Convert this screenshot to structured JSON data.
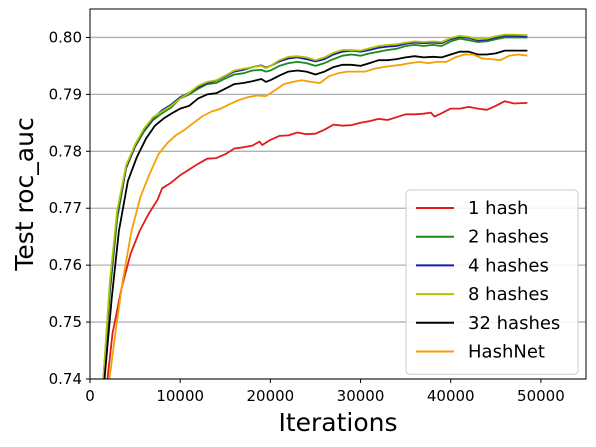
{
  "chart_data": {
    "type": "line",
    "title": "",
    "xlabel": "Iterations",
    "ylabel": "Test roc_auc",
    "xlim": [
      0,
      55000
    ],
    "ylim": [
      0.74,
      0.805
    ],
    "x_ticks": [
      0,
      10000,
      20000,
      30000,
      40000,
      50000
    ],
    "x_tick_labels": [
      "0",
      "10000",
      "20000",
      "30000",
      "40000",
      "50000"
    ],
    "y_ticks": [
      0.74,
      0.75,
      0.76,
      0.77,
      0.78,
      0.79,
      0.8
    ],
    "y_tick_labels": [
      "0.74",
      "0.75",
      "0.76",
      "0.77",
      "0.78",
      "0.79",
      "0.80"
    ],
    "grid": "horizontal",
    "legend_position": "lower-right",
    "series": [
      {
        "name": "1 hash",
        "color": "#e31a1c",
        "points": [
          [
            1800,
            0.738
          ],
          [
            2500,
            0.748
          ],
          [
            3500,
            0.756
          ],
          [
            4500,
            0.762
          ],
          [
            5500,
            0.766
          ],
          [
            6500,
            0.769
          ],
          [
            7500,
            0.7715
          ],
          [
            8000,
            0.7735
          ],
          [
            9000,
            0.7745
          ],
          [
            10000,
            0.7758
          ],
          [
            11000,
            0.7768
          ],
          [
            12000,
            0.7778
          ],
          [
            13000,
            0.7787
          ],
          [
            14000,
            0.7788
          ],
          [
            15000,
            0.7795
          ],
          [
            16000,
            0.7805
          ],
          [
            17000,
            0.7807
          ],
          [
            18000,
            0.781
          ],
          [
            18800,
            0.7817
          ],
          [
            19100,
            0.7811
          ],
          [
            20000,
            0.782
          ],
          [
            21000,
            0.7827
          ],
          [
            22000,
            0.7828
          ],
          [
            23000,
            0.7833
          ],
          [
            24000,
            0.783
          ],
          [
            25000,
            0.7831
          ],
          [
            26000,
            0.7838
          ],
          [
            27000,
            0.7847
          ],
          [
            28000,
            0.7845
          ],
          [
            29000,
            0.7846
          ],
          [
            30000,
            0.785
          ],
          [
            31000,
            0.7853
          ],
          [
            32000,
            0.7857
          ],
          [
            33000,
            0.7855
          ],
          [
            34000,
            0.786
          ],
          [
            35000,
            0.7865
          ],
          [
            36000,
            0.7865
          ],
          [
            37000,
            0.7866
          ],
          [
            37800,
            0.7868
          ],
          [
            38200,
            0.7861
          ],
          [
            39000,
            0.7867
          ],
          [
            40000,
            0.7875
          ],
          [
            41000,
            0.7875
          ],
          [
            42000,
            0.7878
          ],
          [
            43000,
            0.7875
          ],
          [
            44000,
            0.7873
          ],
          [
            45000,
            0.788
          ],
          [
            46000,
            0.7888
          ],
          [
            47000,
            0.7884
          ],
          [
            48500,
            0.7885
          ]
        ]
      },
      {
        "name": "2 hashes",
        "color": "#1a8a1a",
        "points": [
          [
            1400,
            0.738
          ],
          [
            2200,
            0.755
          ],
          [
            3000,
            0.768
          ],
          [
            4000,
            0.777
          ],
          [
            5000,
            0.7808
          ],
          [
            6000,
            0.7835
          ],
          [
            7000,
            0.7855
          ],
          [
            8000,
            0.7867
          ],
          [
            9000,
            0.7877
          ],
          [
            10000,
            0.7893
          ],
          [
            11000,
            0.79
          ],
          [
            12000,
            0.791
          ],
          [
            13000,
            0.7918
          ],
          [
            14000,
            0.792
          ],
          [
            15000,
            0.7928
          ],
          [
            16000,
            0.7935
          ],
          [
            17000,
            0.7937
          ],
          [
            18000,
            0.7942
          ],
          [
            19000,
            0.7943
          ],
          [
            19500,
            0.794
          ],
          [
            20000,
            0.7942
          ],
          [
            21000,
            0.795
          ],
          [
            22000,
            0.7955
          ],
          [
            23000,
            0.7957
          ],
          [
            24000,
            0.7955
          ],
          [
            25000,
            0.795
          ],
          [
            26000,
            0.7955
          ],
          [
            27000,
            0.7962
          ],
          [
            28000,
            0.7968
          ],
          [
            29000,
            0.797
          ],
          [
            30000,
            0.7968
          ],
          [
            31000,
            0.7972
          ],
          [
            32000,
            0.7975
          ],
          [
            33000,
            0.7978
          ],
          [
            34000,
            0.798
          ],
          [
            35000,
            0.7985
          ],
          [
            36000,
            0.7987
          ],
          [
            37000,
            0.7985
          ],
          [
            38000,
            0.7987
          ],
          [
            39000,
            0.7985
          ],
          [
            40000,
            0.7993
          ],
          [
            41000,
            0.7998
          ],
          [
            42000,
            0.7995
          ],
          [
            43000,
            0.7992
          ],
          [
            44000,
            0.7993
          ],
          [
            45000,
            0.7997
          ],
          [
            46000,
            0.8
          ],
          [
            47000,
            0.8
          ],
          [
            48500,
            0.8
          ]
        ]
      },
      {
        "name": "4 hashes",
        "color": "#1a1ab0",
        "points": [
          [
            1400,
            0.738
          ],
          [
            2200,
            0.756
          ],
          [
            3000,
            0.769
          ],
          [
            4000,
            0.7772
          ],
          [
            5000,
            0.781
          ],
          [
            6000,
            0.7838
          ],
          [
            7000,
            0.7858
          ],
          [
            8000,
            0.7872
          ],
          [
            9000,
            0.7882
          ],
          [
            10000,
            0.7895
          ],
          [
            11000,
            0.7903
          ],
          [
            12000,
            0.7913
          ],
          [
            13000,
            0.792
          ],
          [
            14000,
            0.7924
          ],
          [
            15000,
            0.7932
          ],
          [
            16000,
            0.794
          ],
          [
            17000,
            0.7943
          ],
          [
            18000,
            0.7948
          ],
          [
            19000,
            0.7951
          ],
          [
            19500,
            0.7947
          ],
          [
            20000,
            0.795
          ],
          [
            21000,
            0.7958
          ],
          [
            22000,
            0.7963
          ],
          [
            23000,
            0.7965
          ],
          [
            24000,
            0.7962
          ],
          [
            25000,
            0.7958
          ],
          [
            26000,
            0.7962
          ],
          [
            27000,
            0.797
          ],
          [
            28000,
            0.7975
          ],
          [
            29000,
            0.7977
          ],
          [
            30000,
            0.7975
          ],
          [
            31000,
            0.7978
          ],
          [
            32000,
            0.7982
          ],
          [
            33000,
            0.7984
          ],
          [
            34000,
            0.7985
          ],
          [
            35000,
            0.7989
          ],
          [
            36000,
            0.7991
          ],
          [
            37000,
            0.799
          ],
          [
            38000,
            0.7991
          ],
          [
            39000,
            0.799
          ],
          [
            40000,
            0.7997
          ],
          [
            41000,
            0.8001
          ],
          [
            42000,
            0.7999
          ],
          [
            43000,
            0.7995
          ],
          [
            44000,
            0.7996
          ],
          [
            45000,
            0.8
          ],
          [
            46000,
            0.8003
          ],
          [
            47000,
            0.8003
          ],
          [
            48500,
            0.8002
          ]
        ]
      },
      {
        "name": "8 hashes",
        "color": "#b5c400",
        "points": [
          [
            1400,
            0.738
          ],
          [
            2200,
            0.757
          ],
          [
            3000,
            0.7695
          ],
          [
            4000,
            0.7775
          ],
          [
            5000,
            0.7812
          ],
          [
            6000,
            0.784
          ],
          [
            7000,
            0.786
          ],
          [
            8000,
            0.787
          ],
          [
            9000,
            0.788
          ],
          [
            10000,
            0.7893
          ],
          [
            11000,
            0.7903
          ],
          [
            12000,
            0.7915
          ],
          [
            13000,
            0.7922
          ],
          [
            14000,
            0.7925
          ],
          [
            15000,
            0.7933
          ],
          [
            16000,
            0.7942
          ],
          [
            17000,
            0.7945
          ],
          [
            18000,
            0.7948
          ],
          [
            19000,
            0.795
          ],
          [
            19500,
            0.7946
          ],
          [
            20000,
            0.795
          ],
          [
            21000,
            0.796
          ],
          [
            22000,
            0.7966
          ],
          [
            23000,
            0.7967
          ],
          [
            24000,
            0.7965
          ],
          [
            25000,
            0.796
          ],
          [
            26000,
            0.7965
          ],
          [
            27000,
            0.7973
          ],
          [
            28000,
            0.7978
          ],
          [
            29000,
            0.7978
          ],
          [
            30000,
            0.7977
          ],
          [
            31000,
            0.7981
          ],
          [
            32000,
            0.7985
          ],
          [
            33000,
            0.7987
          ],
          [
            34000,
            0.7988
          ],
          [
            35000,
            0.7991
          ],
          [
            36000,
            0.7993
          ],
          [
            37000,
            0.7992
          ],
          [
            38000,
            0.7993
          ],
          [
            39000,
            0.7992
          ],
          [
            40000,
            0.7999
          ],
          [
            41000,
            0.8003
          ],
          [
            42000,
            0.8001
          ],
          [
            43000,
            0.7997
          ],
          [
            44000,
            0.7998
          ],
          [
            45000,
            0.8002
          ],
          [
            46000,
            0.8005
          ],
          [
            47000,
            0.8005
          ],
          [
            48500,
            0.8004
          ]
        ]
      },
      {
        "name": "32 hashes",
        "color": "#000000",
        "points": [
          [
            1500,
            0.738
          ],
          [
            2400,
            0.754
          ],
          [
            3200,
            0.766
          ],
          [
            4200,
            0.7748
          ],
          [
            5200,
            0.779
          ],
          [
            6200,
            0.7822
          ],
          [
            7200,
            0.7845
          ],
          [
            8200,
            0.7858
          ],
          [
            9000,
            0.7866
          ],
          [
            10000,
            0.7875
          ],
          [
            11000,
            0.788
          ],
          [
            12000,
            0.7893
          ],
          [
            13000,
            0.79
          ],
          [
            14000,
            0.7902
          ],
          [
            15000,
            0.791
          ],
          [
            16000,
            0.7918
          ],
          [
            17000,
            0.792
          ],
          [
            18000,
            0.7923
          ],
          [
            19000,
            0.7927
          ],
          [
            19500,
            0.7922
          ],
          [
            20000,
            0.7925
          ],
          [
            21000,
            0.7933
          ],
          [
            22000,
            0.794
          ],
          [
            23000,
            0.7942
          ],
          [
            24000,
            0.794
          ],
          [
            25000,
            0.7935
          ],
          [
            26000,
            0.794
          ],
          [
            27000,
            0.7948
          ],
          [
            28000,
            0.7952
          ],
          [
            29000,
            0.7952
          ],
          [
            30000,
            0.795
          ],
          [
            31000,
            0.7955
          ],
          [
            32000,
            0.796
          ],
          [
            33000,
            0.796
          ],
          [
            34000,
            0.7962
          ],
          [
            35000,
            0.7965
          ],
          [
            36000,
            0.7967
          ],
          [
            37000,
            0.7965
          ],
          [
            38000,
            0.7966
          ],
          [
            39000,
            0.7965
          ],
          [
            40000,
            0.797
          ],
          [
            41000,
            0.7975
          ],
          [
            42000,
            0.7975
          ],
          [
            43000,
            0.797
          ],
          [
            44000,
            0.797
          ],
          [
            45000,
            0.7972
          ],
          [
            46000,
            0.7977
          ],
          [
            47000,
            0.7977
          ],
          [
            48500,
            0.7977
          ]
        ]
      },
      {
        "name": "HashNet",
        "color": "#f5a000",
        "points": [
          [
            2000,
            0.738
          ],
          [
            2800,
            0.748
          ],
          [
            3600,
            0.757
          ],
          [
            4600,
            0.766
          ],
          [
            5600,
            0.772
          ],
          [
            6600,
            0.776
          ],
          [
            7600,
            0.7795
          ],
          [
            8600,
            0.7815
          ],
          [
            9500,
            0.7828
          ],
          [
            10500,
            0.7838
          ],
          [
            11500,
            0.785
          ],
          [
            12500,
            0.7862
          ],
          [
            13500,
            0.787
          ],
          [
            14500,
            0.7875
          ],
          [
            15500,
            0.7883
          ],
          [
            16500,
            0.789
          ],
          [
            17500,
            0.7895
          ],
          [
            18500,
            0.7898
          ],
          [
            19500,
            0.7897
          ],
          [
            20500,
            0.7907
          ],
          [
            21500,
            0.7918
          ],
          [
            22500,
            0.7922
          ],
          [
            23500,
            0.7925
          ],
          [
            24500,
            0.7922
          ],
          [
            25500,
            0.792
          ],
          [
            26500,
            0.7932
          ],
          [
            27500,
            0.7937
          ],
          [
            28500,
            0.794
          ],
          [
            29500,
            0.794
          ],
          [
            30500,
            0.794
          ],
          [
            31500,
            0.7945
          ],
          [
            32500,
            0.7948
          ],
          [
            33500,
            0.795
          ],
          [
            34500,
            0.7952
          ],
          [
            35500,
            0.7955
          ],
          [
            36500,
            0.7957
          ],
          [
            37500,
            0.7955
          ],
          [
            38500,
            0.7957
          ],
          [
            39500,
            0.7957
          ],
          [
            40500,
            0.7965
          ],
          [
            41500,
            0.797
          ],
          [
            42500,
            0.797
          ],
          [
            43500,
            0.7963
          ],
          [
            44500,
            0.7962
          ],
          [
            45500,
            0.796
          ],
          [
            46500,
            0.7968
          ],
          [
            47500,
            0.797
          ],
          [
            48500,
            0.7968
          ]
        ]
      }
    ]
  }
}
